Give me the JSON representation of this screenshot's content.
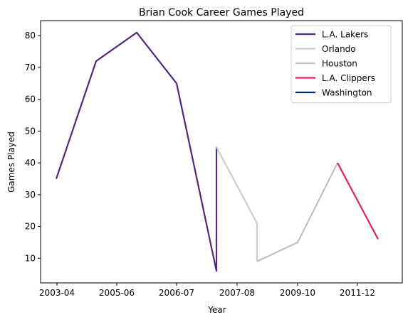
{
  "chart_data": {
    "type": "line",
    "title": "Brian Cook Career Games Played",
    "xlabel": "Year",
    "ylabel": "Games Played",
    "x_ticks": [
      "2003-04",
      "2005-06",
      "2006-07",
      "2007-08",
      "2009-10",
      "2011-12"
    ],
    "y_ticks": [
      10,
      20,
      30,
      40,
      50,
      60,
      70,
      80
    ],
    "ylim": [
      2.25,
      84.75
    ],
    "grid": false,
    "legend_position": "top-right",
    "series": [
      {
        "name": "L.A. Lakers",
        "color": "#552583",
        "points": [
          [
            "2003-04",
            35
          ],
          [
            "2004-05",
            72
          ],
          [
            "2005-06",
            81
          ],
          [
            "2006-07",
            65
          ],
          [
            "2007-08",
            6
          ],
          [
            "2007-08",
            45
          ]
        ]
      },
      {
        "name": "Orlando",
        "color": "#c4ced4",
        "points": [
          [
            "2007-08",
            45
          ],
          [
            "2008-09",
            21
          ],
          [
            "2008-09",
            9
          ]
        ]
      },
      {
        "name": "Houston",
        "color": "#c0c0c0",
        "points": [
          [
            "2008-09",
            9
          ],
          [
            "2009-10",
            15
          ],
          [
            "2010-11",
            40
          ]
        ]
      },
      {
        "name": "L.A. Clippers",
        "color": "#e0224f",
        "points": [
          [
            "2010-11",
            40
          ],
          [
            "2011-12",
            16
          ]
        ]
      },
      {
        "name": "Washington",
        "color": "#002b5c",
        "points": []
      }
    ]
  }
}
